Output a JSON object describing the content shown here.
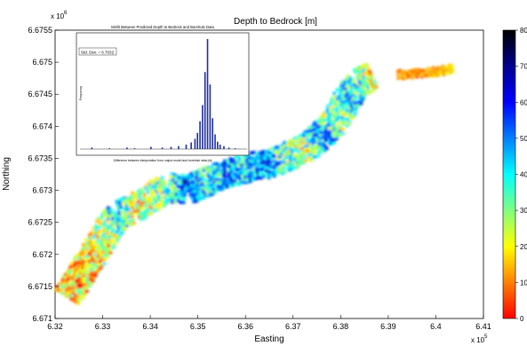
{
  "chart_data": [
    {
      "type": "heatmap",
      "title": "Depth to Bedrock [m]",
      "xlabel": "Easting",
      "ylabel": "Northing",
      "x_exponent_label": "x 10",
      "x_exponent_power": "5",
      "y_exponent_label": "x 10",
      "y_exponent_power": "6",
      "xlim": [
        6.32,
        6.41
      ],
      "ylim": [
        6.671,
        6.6755
      ],
      "x_ticks": [
        "6.32",
        "6.33",
        "6.34",
        "6.35",
        "6.36",
        "6.37",
        "6.38",
        "6.39",
        "6.4",
        "6.41"
      ],
      "y_ticks": [
        "6.671",
        "6.6715",
        "6.672",
        "6.6725",
        "6.673",
        "6.6735",
        "6.674",
        "6.6745",
        "6.675",
        "6.6755"
      ],
      "colorbar": {
        "range": [
          0,
          80
        ],
        "ticks": [
          "0",
          "10",
          "20",
          "30",
          "40",
          "50",
          "60",
          "70",
          "80"
        ],
        "stops": [
          "#ff0000",
          "#ff8000",
          "#ffff00",
          "#80ff80",
          "#00ffff",
          "#0080ff",
          "#0000ff",
          "#00008f",
          "#000000"
        ]
      },
      "corridor": [
        {
          "x": 6.3225,
          "y": 6.67135,
          "depth": 18
        },
        {
          "x": 6.3255,
          "y": 6.6717,
          "depth": 15
        },
        {
          "x": 6.3285,
          "y": 6.67205,
          "depth": 22
        },
        {
          "x": 6.331,
          "y": 6.6724,
          "depth": 28
        },
        {
          "x": 6.3335,
          "y": 6.67265,
          "depth": 45
        },
        {
          "x": 6.3365,
          "y": 6.6727,
          "depth": 20
        },
        {
          "x": 6.34,
          "y": 6.6729,
          "depth": 30
        },
        {
          "x": 6.344,
          "y": 6.67305,
          "depth": 35
        },
        {
          "x": 6.348,
          "y": 6.673,
          "depth": 55
        },
        {
          "x": 6.352,
          "y": 6.67315,
          "depth": 40
        },
        {
          "x": 6.356,
          "y": 6.67325,
          "depth": 50
        },
        {
          "x": 6.36,
          "y": 6.67335,
          "depth": 45
        },
        {
          "x": 6.364,
          "y": 6.6734,
          "depth": 55
        },
        {
          "x": 6.368,
          "y": 6.6735,
          "depth": 35
        },
        {
          "x": 6.372,
          "y": 6.67365,
          "depth": 25
        },
        {
          "x": 6.376,
          "y": 6.67385,
          "depth": 50
        },
        {
          "x": 6.379,
          "y": 6.6741,
          "depth": 30
        },
        {
          "x": 6.3815,
          "y": 6.67445,
          "depth": 40
        },
        {
          "x": 6.384,
          "y": 6.6747,
          "depth": 35
        },
        {
          "x": 6.387,
          "y": 6.6748,
          "depth": 20
        }
      ],
      "east_strip": [
        {
          "x": 6.392,
          "y": 6.6748,
          "depth": 12
        },
        {
          "x": 6.396,
          "y": 6.67482,
          "depth": 10
        },
        {
          "x": 6.4,
          "y": 6.67485,
          "depth": 14
        },
        {
          "x": 6.404,
          "y": 6.6749,
          "depth": 18
        }
      ]
    },
    {
      "type": "bar",
      "title": "Misfit Between Predicted Depth to Bedrock and Borehole Data",
      "xlabel": "Difference between interpolation from output model and borehole data [m]",
      "ylabel": "Frequency",
      "annotation": "Std. Dev. = 6.7032",
      "histogram": [
        {
          "x": -92,
          "count": 2
        },
        {
          "x": -78,
          "count": 1
        },
        {
          "x": -64,
          "count": 2
        },
        {
          "x": -58,
          "count": 1
        },
        {
          "x": -45,
          "count": 3
        },
        {
          "x": -36,
          "count": 2
        },
        {
          "x": -29,
          "count": 3
        },
        {
          "x": -23,
          "count": 4
        },
        {
          "x": -17,
          "count": 6
        },
        {
          "x": -13,
          "count": 9
        },
        {
          "x": -10,
          "count": 14
        },
        {
          "x": -8,
          "count": 22
        },
        {
          "x": -6,
          "count": 38
        },
        {
          "x": -4,
          "count": 60
        },
        {
          "x": -2,
          "count": 105
        },
        {
          "x": 0,
          "count": 150
        },
        {
          "x": 2,
          "count": 88
        },
        {
          "x": 4,
          "count": 42
        },
        {
          "x": 6,
          "count": 20
        },
        {
          "x": 8,
          "count": 10
        },
        {
          "x": 10,
          "count": 6
        },
        {
          "x": 13,
          "count": 4
        },
        {
          "x": 17,
          "count": 2
        },
        {
          "x": 22,
          "count": 1
        }
      ]
    }
  ]
}
